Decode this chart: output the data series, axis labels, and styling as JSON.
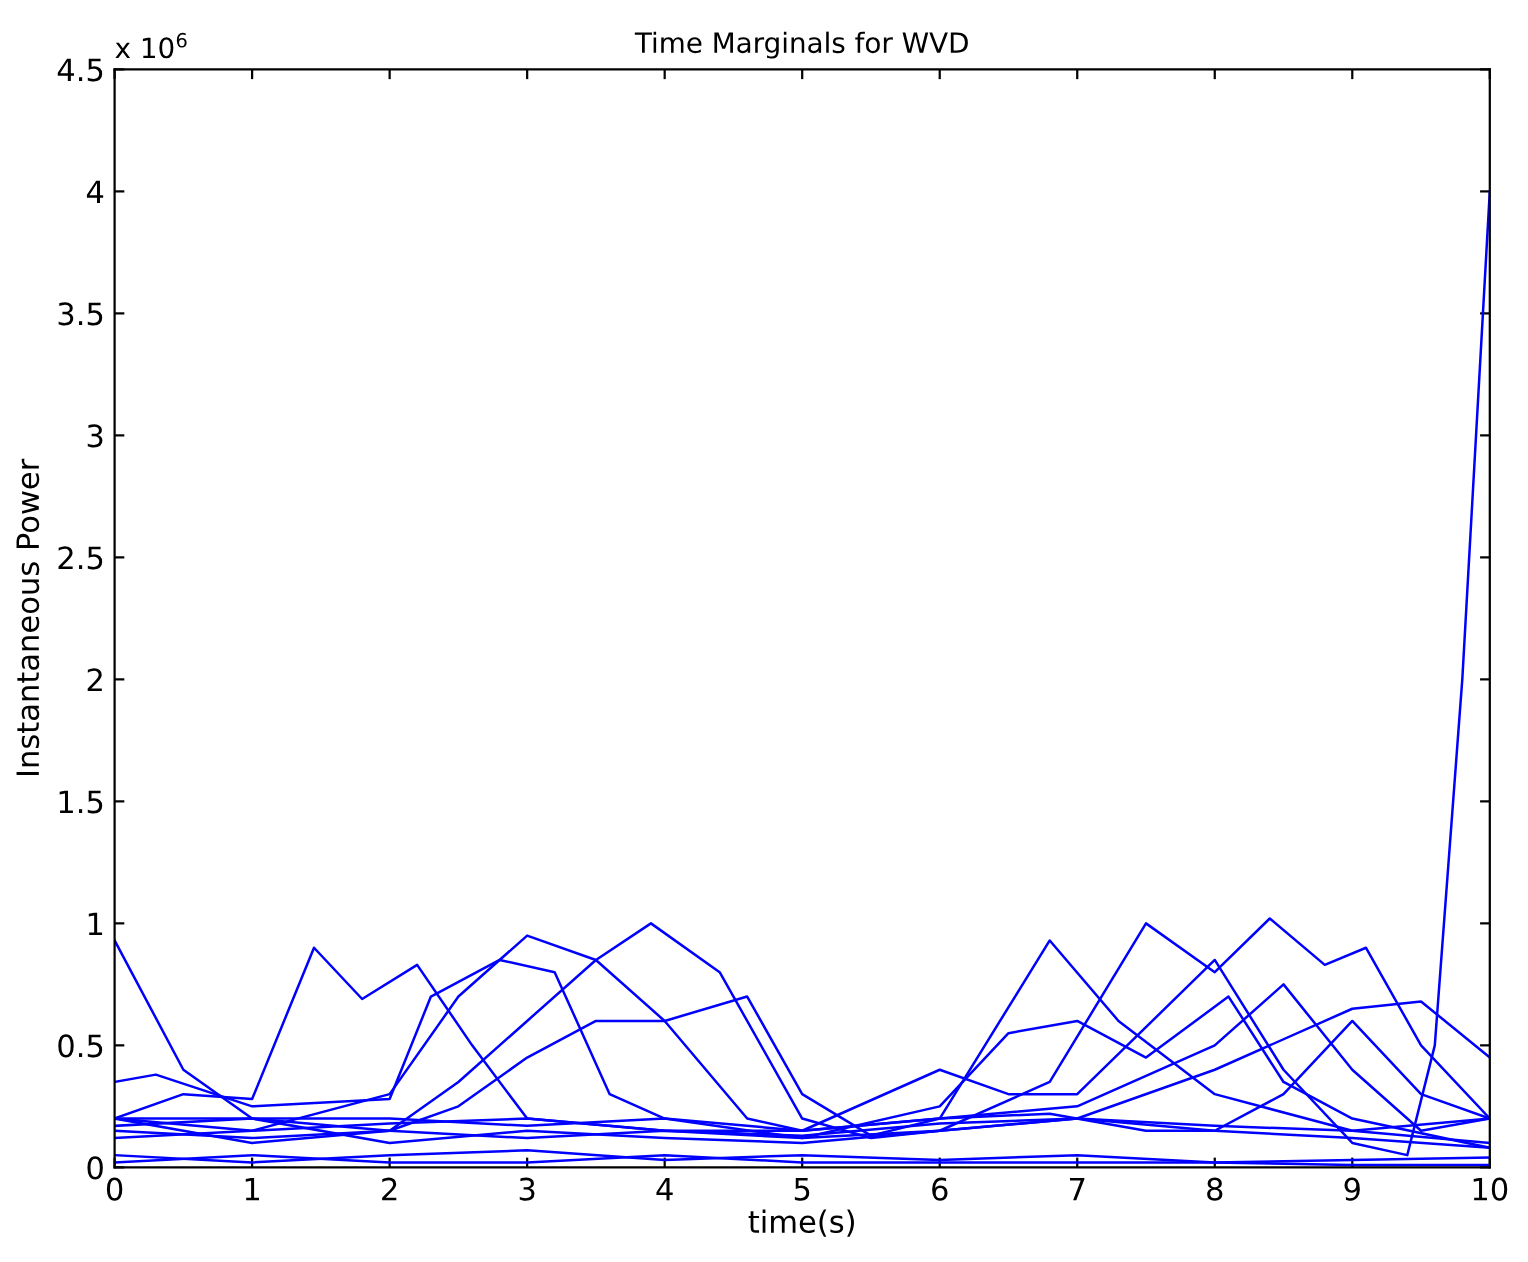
{
  "chart_data": {
    "type": "line",
    "title": "Time Marginals for WVD",
    "xlabel": "time(s)",
    "ylabel": "Instantaneous Power",
    "annotations": [
      "x 10$^{6}$"
    ],
    "xlim": [
      0,
      10
    ],
    "xticks": [
      0,
      1,
      2,
      3,
      4,
      5,
      6,
      7,
      8,
      9,
      10
    ],
    "ylim": [
      0,
      4.5
    ],
    "yticks": [
      0,
      0.5,
      1,
      1.5,
      2,
      2.5,
      3,
      3.5,
      4,
      4.5
    ],
    "grid": false,
    "legend": false,
    "marker": "none",
    "line_style": "solid",
    "series": [
      {
        "color": "#0000ff",
        "x": [
          0,
          0.5,
          1,
          2,
          3,
          4,
          5,
          6,
          7,
          8,
          9,
          10
        ],
        "values": [
          0.93,
          0.4,
          0.2,
          0.15,
          0.12,
          0.15,
          0.13,
          0.18,
          0.2,
          0.17,
          0.15,
          0.1
        ]
      },
      {
        "color": "#0000ff",
        "x": [
          0,
          0.5,
          1,
          1.45,
          1.8,
          2.2,
          2.6,
          3,
          4,
          5,
          6,
          7,
          8,
          9,
          10
        ],
        "values": [
          0.2,
          0.3,
          0.28,
          0.9,
          0.69,
          0.83,
          0.5,
          0.2,
          0.15,
          0.12,
          0.15,
          0.2,
          0.15,
          0.12,
          0.08
        ]
      },
      {
        "color": "#0000ff",
        "x": [
          0,
          1,
          2,
          2.5,
          3,
          3.5,
          4,
          4.6,
          5,
          6,
          7,
          8,
          8.5,
          9,
          9.5,
          10
        ],
        "values": [
          0.12,
          0.15,
          0.3,
          0.7,
          0.95,
          0.85,
          0.6,
          0.2,
          0.15,
          0.2,
          0.25,
          0.5,
          0.75,
          0.4,
          0.15,
          0.2
        ]
      },
      {
        "color": "#0000ff",
        "x": [
          0,
          1,
          2,
          2.5,
          3,
          3.5,
          3.9,
          4.4,
          5,
          5.5,
          6,
          6.8,
          7.5,
          8,
          8.4,
          8.8,
          9.1,
          9.5,
          10
        ],
        "values": [
          0.15,
          0.12,
          0.15,
          0.35,
          0.6,
          0.85,
          1.0,
          0.8,
          0.2,
          0.12,
          0.15,
          0.35,
          1.0,
          0.8,
          1.02,
          0.83,
          0.9,
          0.5,
          0.2
        ]
      },
      {
        "color": "#0000ff",
        "x": [
          0,
          1,
          2,
          2.5,
          3,
          3.5,
          4,
          4.6,
          5,
          5.5,
          6,
          6.8,
          7.3,
          8,
          9,
          10
        ],
        "values": [
          0.2,
          0.1,
          0.15,
          0.25,
          0.45,
          0.6,
          0.6,
          0.7,
          0.3,
          0.13,
          0.2,
          0.93,
          0.6,
          0.3,
          0.15,
          0.2
        ]
      },
      {
        "color": "#0000ff",
        "x": [
          0,
          0.3,
          1,
          2,
          2.3,
          2.8,
          3.2,
          3.6,
          4,
          5,
          6,
          6.5,
          7,
          7.5,
          8.1,
          8.5,
          9,
          10
        ],
        "values": [
          0.35,
          0.38,
          0.25,
          0.28,
          0.7,
          0.85,
          0.8,
          0.3,
          0.2,
          0.12,
          0.25,
          0.55,
          0.6,
          0.45,
          0.7,
          0.35,
          0.2,
          0.08
        ]
      },
      {
        "color": "#0000ff",
        "x": [
          0,
          1,
          2,
          3,
          4,
          5,
          6,
          6.5,
          7,
          8,
          8.5,
          9,
          9.4,
          9.6,
          9.8,
          10
        ],
        "values": [
          0.2,
          0.15,
          0.18,
          0.2,
          0.15,
          0.15,
          0.4,
          0.3,
          0.3,
          0.85,
          0.4,
          0.1,
          0.05,
          0.5,
          2.0,
          4.0
        ]
      },
      {
        "color": "#0000ff",
        "x": [
          0,
          1,
          2,
          3,
          4,
          5,
          6,
          7,
          8,
          9,
          10
        ],
        "values": [
          0.05,
          0.02,
          0.05,
          0.07,
          0.03,
          0.05,
          0.03,
          0.05,
          0.02,
          0.03,
          0.04
        ]
      },
      {
        "color": "#0000ff",
        "x": [
          0,
          1,
          2,
          3,
          4,
          5,
          6,
          7,
          8,
          9,
          10
        ],
        "values": [
          0.02,
          0.05,
          0.02,
          0.02,
          0.05,
          0.02,
          0.02,
          0.02,
          0.02,
          0.01,
          0.01
        ]
      },
      {
        "color": "#0000ff",
        "x": [
          0,
          1,
          2,
          3,
          4,
          5,
          6,
          7,
          8,
          9,
          9.5,
          10
        ],
        "values": [
          0.17,
          0.2,
          0.1,
          0.15,
          0.12,
          0.1,
          0.15,
          0.2,
          0.4,
          0.65,
          0.68,
          0.45
        ]
      },
      {
        "color": "#0000ff",
        "x": [
          0,
          1,
          2,
          3,
          4,
          5,
          6,
          6.8,
          7.5,
          8,
          8.5,
          9,
          9.5,
          10
        ],
        "values": [
          0.2,
          0.2,
          0.2,
          0.17,
          0.2,
          0.15,
          0.2,
          0.22,
          0.15,
          0.15,
          0.3,
          0.6,
          0.3,
          0.2
        ]
      }
    ]
  }
}
